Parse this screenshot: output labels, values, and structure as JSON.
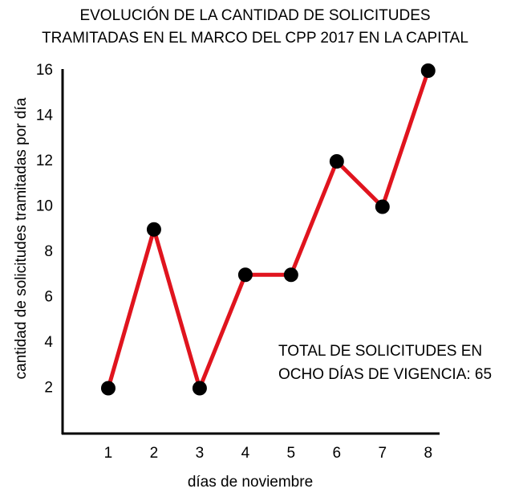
{
  "chart_data": {
    "type": "line",
    "title": [
      "EVOLUCIÓN DE LA CANTIDAD DE SOLICITUDES",
      "TRAMITADAS EN EL MARCO DEL CPP 2017 EN LA CAPITAL"
    ],
    "x_label": "días de noviembre",
    "y_label": "cantidad de  solicitudes tramitadas por día",
    "annotation": [
      "TOTAL DE SOLICITUDES EN",
      "OCHO DÍAS DE VIGENCIA: 65"
    ],
    "x": [
      1,
      2,
      3,
      4,
      5,
      6,
      7,
      8
    ],
    "values": [
      2,
      9,
      2,
      7,
      7,
      12,
      10,
      16
    ],
    "color": "#e0141e",
    "marker_color": "#000000",
    "xlim": [
      0,
      8.25
    ],
    "xticks": [
      1,
      2,
      3,
      4,
      5,
      6,
      7,
      8
    ],
    "ylim": [
      0,
      16
    ],
    "yticks": [
      2,
      4,
      6,
      8,
      10,
      12,
      14,
      16
    ],
    "grid": false
  }
}
